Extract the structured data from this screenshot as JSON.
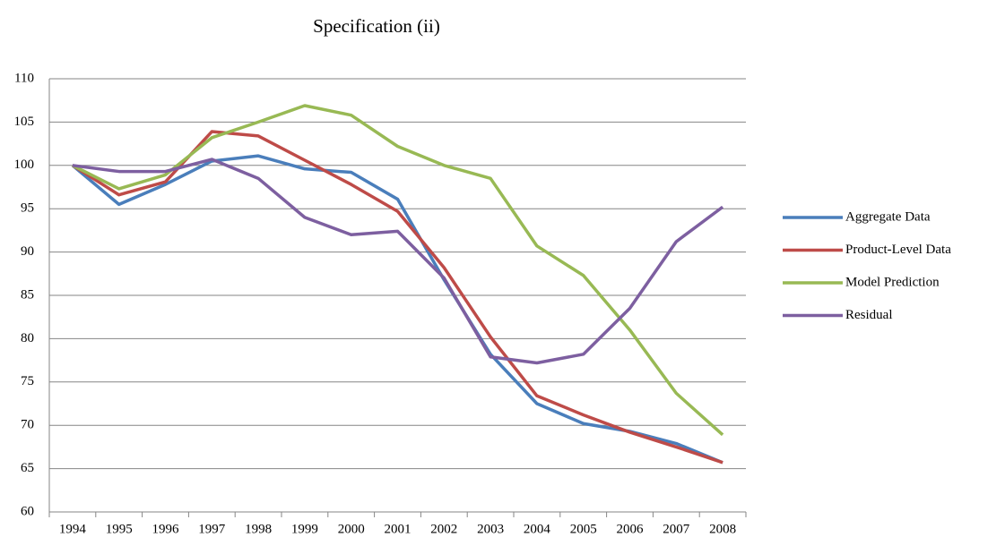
{
  "chart_data": {
    "type": "line",
    "title": "Specification (ii)",
    "categories": [
      "1994",
      "1995",
      "1996",
      "1997",
      "1998",
      "1999",
      "2000",
      "2001",
      "2002",
      "2003",
      "2004",
      "2005",
      "2006",
      "2007",
      "2008"
    ],
    "series": [
      {
        "name": "Aggregate Data",
        "color": "#4a7ebb",
        "values": [
          100,
          95.5,
          97.8,
          100.5,
          101.1,
          99.6,
          99.2,
          96.1,
          86.8,
          78.2,
          72.5,
          70.2,
          69.3,
          67.9,
          65.7
        ]
      },
      {
        "name": "Product-Level Data",
        "color": "#be4b48",
        "values": [
          100,
          96.6,
          98.1,
          103.9,
          103.4,
          100.6,
          97.8,
          94.7,
          88.2,
          80.2,
          73.4,
          71.2,
          69.2,
          67.5,
          65.7
        ]
      },
      {
        "name": "Model Prediction",
        "color": "#98b954",
        "values": [
          100,
          97.3,
          98.9,
          103.2,
          105.0,
          106.9,
          105.8,
          102.2,
          100.0,
          98.5,
          90.7,
          87.3,
          81.0,
          73.7,
          68.9
        ]
      },
      {
        "name": "Residual",
        "color": "#7d5fa0",
        "values": [
          100,
          99.3,
          99.3,
          100.7,
          98.5,
          94.0,
          92.0,
          92.4,
          87.0,
          77.9,
          77.2,
          78.2,
          83.5,
          91.2,
          95.2
        ]
      }
    ],
    "ylim": [
      60,
      110
    ],
    "yticks": [
      60,
      65,
      70,
      75,
      80,
      85,
      90,
      95,
      100,
      105,
      110
    ],
    "grid": true,
    "legend": "right"
  }
}
